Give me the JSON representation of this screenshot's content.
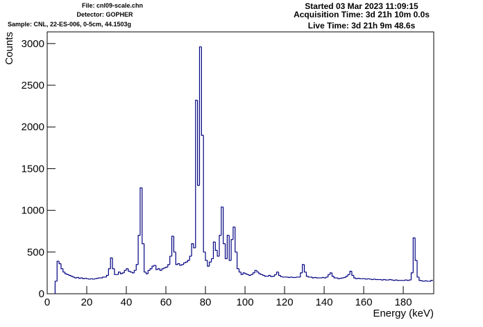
{
  "chart_data": {
    "type": "histogram",
    "annotations": [
      "File: cnl09-scale.chn",
      "Detector: GOPHER",
      "Sample: CNL, 22-ES-006, 0-5cm, 44.1503g",
      "Started 03 Mar 2023 11:09:15",
      "Acquisition Time: 3d 21h 10m 0.0s",
      "Live Time: 3d 21h 9m 48.6s"
    ],
    "x_label": "Energy (keV)",
    "y_label": "Counts",
    "color": "#000080",
    "xlim": [
      0,
      195.4
    ],
    "ylim": [
      0,
      3140
    ],
    "xticks": [
      0,
      20,
      40,
      60,
      80,
      100,
      120,
      140,
      160,
      180
    ],
    "yticks": [
      0,
      500,
      1000,
      1500,
      2000,
      2500,
      3000
    ],
    "bins": [
      4,
      5,
      6,
      7,
      8,
      9,
      10,
      11,
      12,
      13,
      14,
      15,
      16,
      17,
      18,
      19,
      20,
      21,
      22,
      23,
      24,
      25,
      26,
      27,
      28,
      29,
      30,
      31,
      32,
      33,
      34,
      35,
      36,
      37,
      38,
      39,
      40,
      41,
      42,
      43,
      44,
      45,
      46,
      47,
      48,
      49,
      50,
      51,
      52,
      53,
      54,
      55,
      56,
      57,
      58,
      59,
      60,
      61,
      62,
      63,
      64,
      65,
      66,
      67,
      68,
      69,
      70,
      71,
      72,
      73,
      74,
      75,
      76,
      77,
      78,
      79,
      80,
      81,
      82,
      83,
      84,
      85,
      86,
      87,
      88,
      89,
      90,
      91,
      92,
      93,
      94,
      95,
      96,
      97,
      98,
      99,
      100,
      101,
      102,
      103,
      104,
      105,
      106,
      107,
      108,
      109,
      110,
      111,
      112,
      113,
      114,
      115,
      116,
      117,
      118,
      119,
      120,
      121,
      122,
      123,
      124,
      125,
      126,
      127,
      128,
      129,
      130,
      131,
      132,
      133,
      134,
      135,
      136,
      137,
      138,
      139,
      140,
      141,
      142,
      143,
      144,
      145,
      146,
      147,
      148,
      149,
      150,
      151,
      152,
      153,
      154,
      155,
      156,
      157,
      158,
      159,
      160,
      161,
      162,
      163,
      164,
      165,
      166,
      167,
      168,
      169,
      170,
      171,
      172,
      173,
      174,
      175,
      176,
      177,
      178,
      179,
      180,
      181,
      182,
      183,
      184,
      185,
      186,
      187,
      188,
      189,
      190,
      191,
      192,
      193,
      194,
      195
    ],
    "values": [
      150,
      390,
      360,
      300,
      260,
      240,
      230,
      220,
      210,
      200,
      190,
      195,
      185,
      190,
      180,
      185,
      180,
      175,
      180,
      175,
      180,
      185,
      190,
      190,
      200,
      200,
      220,
      300,
      430,
      300,
      230,
      230,
      260,
      240,
      250,
      280,
      300,
      270,
      260,
      250,
      280,
      350,
      700,
      1270,
      600,
      260,
      240,
      280,
      300,
      330,
      340,
      290,
      300,
      280,
      300,
      310,
      320,
      350,
      450,
      690,
      500,
      350,
      360,
      340,
      350,
      370,
      380,
      400,
      450,
      600,
      550,
      2320,
      1300,
      2960,
      1900,
      500,
      400,
      330,
      380,
      420,
      620,
      520,
      450,
      700,
      1040,
      600,
      420,
      700,
      400,
      650,
      800,
      500,
      300,
      260,
      230,
      250,
      240,
      230,
      220,
      230,
      250,
      280,
      260,
      240,
      230,
      220,
      210,
      210,
      220,
      205,
      210,
      230,
      260,
      220,
      205,
      200,
      200,
      200,
      195,
      200,
      195,
      195,
      200,
      200,
      250,
      350,
      260,
      210,
      200,
      200,
      190,
      195,
      190,
      190,
      190,
      195,
      190,
      200,
      230,
      250,
      210,
      190,
      190,
      180,
      185,
      190,
      195,
      210,
      230,
      270,
      220,
      190,
      180,
      185,
      180,
      180,
      180,
      175,
      180,
      175,
      170,
      175,
      170,
      170,
      170,
      165,
      170,
      165,
      165,
      170,
      165,
      160,
      165,
      160,
      160,
      160,
      160,
      165,
      160,
      165,
      250,
      670,
      400,
      200,
      160,
      155,
      150,
      155,
      150,
      150,
      160
    ]
  }
}
